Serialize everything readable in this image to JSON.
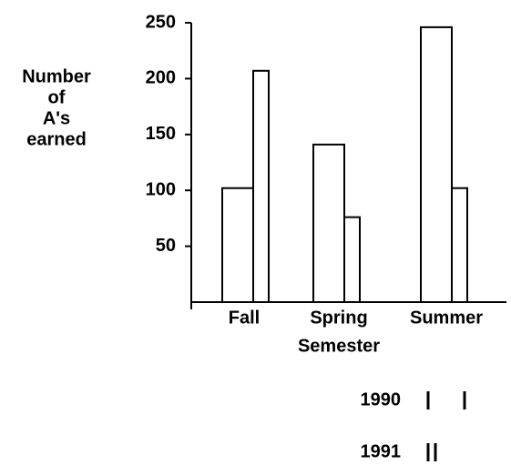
{
  "chart_data": {
    "type": "bar",
    "ylabel": [
      "Number",
      "of",
      "A's",
      "earned"
    ],
    "xlabel": "Semester",
    "categories": [
      "Fall",
      "Spring",
      "Summer"
    ],
    "series": [
      {
        "name": "1990",
        "color": "#ffffff",
        "values": [
          102,
          141,
          246
        ]
      },
      {
        "name": "1991",
        "color": "#ffffff",
        "values": [
          207,
          76,
          102
        ]
      }
    ],
    "ylim": [
      0,
      250
    ],
    "yticks": [
      50,
      100,
      150,
      200,
      250
    ],
    "grid": false,
    "legend": "bottom-right"
  }
}
